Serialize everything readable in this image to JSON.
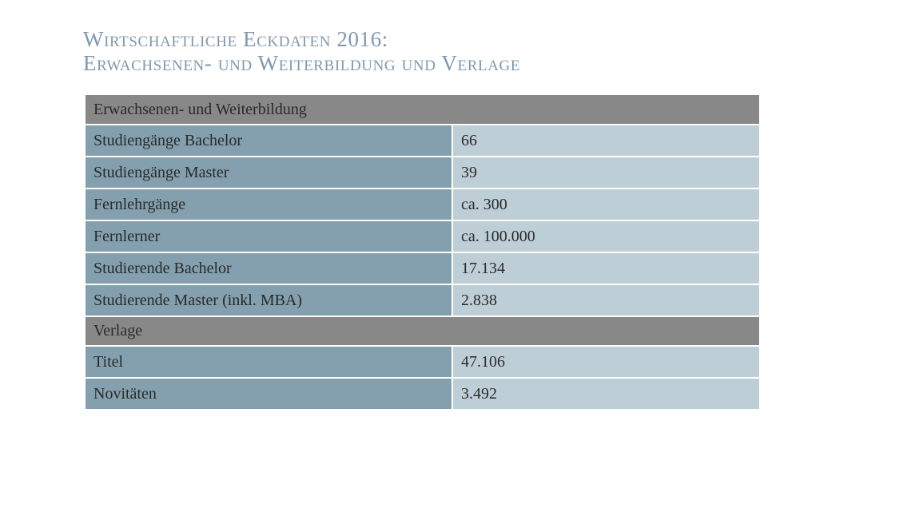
{
  "title": {
    "line1": "Wirtschaftliche Eckdaten 2016:",
    "line2": "Erwachsenen- und Weiterbildung und Verlage"
  },
  "sections": [
    {
      "heading": "Erwachsenen- und Weiterbildung",
      "rows": [
        {
          "label": "Studiengänge Bachelor",
          "value": "66"
        },
        {
          "label": "Studiengänge Master",
          "value": "39"
        },
        {
          "label": "Fernlehrgänge",
          "value": "ca. 300"
        },
        {
          "label": "Fernlerner",
          "value": "ca. 100.000"
        },
        {
          "label": "Studierende Bachelor",
          "value": "17.134"
        },
        {
          "label": "Studierende Master (inkl. MBA)",
          "value": "2.838"
        }
      ]
    },
    {
      "heading": "Verlage",
      "rows": [
        {
          "label": "Titel",
          "value": "47.106"
        },
        {
          "label": "Novitäten",
          "value": "3.492"
        }
      ]
    }
  ],
  "colors": {
    "title": "#8199ae",
    "section_header": "#888888",
    "label_cell": "#84a0ae",
    "value_cell": "#bdced7"
  }
}
